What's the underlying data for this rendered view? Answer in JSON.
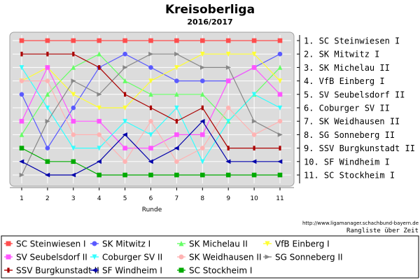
{
  "chart_data": {
    "type": "line",
    "title": "Kreisoberliga",
    "subtitle": "2016/2017",
    "xlabel": "Runde",
    "ylabel": "",
    "x": [
      1,
      2,
      3,
      4,
      5,
      6,
      7,
      8,
      9,
      10,
      11
    ],
    "xlim": [
      1,
      11
    ],
    "ylim": [
      1,
      11
    ],
    "y_inverted": true,
    "grid": true,
    "legend_position": "bottom",
    "rank_labels": [
      "1. SC Steinwiesen I",
      "2. SK Mitwitz I",
      "3. SK Michelau II",
      "4. VfB Einberg I",
      "5. SV Seubelsdorf II",
      "6. Coburger SV II",
      "7. SK Weidhausen II",
      "8. SG Sonneberg II",
      "9. SSV Burgkunstadt II",
      "10. SF Windheim I",
      "11. SC Stockheim I"
    ],
    "source_url": "http://www.ligamanager.schachbund-bayern.de",
    "footer_label": "Rangliste über Zeit",
    "series": [
      {
        "name": "SC Steinwiesen I",
        "color": "#ff4d4d",
        "marker": "square",
        "values": [
          1,
          1,
          1,
          1,
          1,
          1,
          1,
          1,
          1,
          1,
          1
        ]
      },
      {
        "name": "SK Mitwitz I",
        "color": "#5a5aff",
        "marker": "circle",
        "values": [
          5,
          9,
          6,
          3,
          2,
          3,
          4,
          4,
          4,
          3,
          2
        ]
      },
      {
        "name": "SK Michelau II",
        "color": "#66ff66",
        "marker": "triangle-up",
        "values": [
          8,
          5,
          3,
          2,
          4,
          5,
          5,
          5,
          7,
          5,
          3
        ]
      },
      {
        "name": "VfB Einberg I",
        "color": "#ffff33",
        "marker": "triangle-down",
        "values": [
          4,
          3,
          5,
          6,
          6,
          4,
          3,
          2,
          2,
          2,
          4
        ]
      },
      {
        "name": "SV Seubelsdorf II",
        "color": "#ff55ff",
        "marker": "square",
        "values": [
          7,
          3,
          7,
          7,
          9,
          9,
          8,
          8,
          4,
          3,
          5
        ]
      },
      {
        "name": "Coburger SV II",
        "color": "#33ffff",
        "marker": "triangle-down",
        "values": [
          3,
          6,
          9,
          9,
          7,
          8,
          6,
          10,
          7,
          5,
          6
        ]
      },
      {
        "name": "SK Weidhausen II",
        "color": "#ffb3b3",
        "marker": "circle",
        "values": [
          4,
          4,
          8,
          8,
          10,
          7,
          10,
          9,
          6,
          8,
          7
        ]
      },
      {
        "name": "SG Sonneberg II",
        "color": "#888888",
        "marker": "triangle-right",
        "values": [
          11,
          7,
          4,
          5,
          3,
          2,
          2,
          3,
          3,
          7,
          8
        ]
      },
      {
        "name": "SSV Burgkunstadt II",
        "color": "#aa0000",
        "marker": "bar",
        "values": [
          2,
          2,
          2,
          3,
          5,
          6,
          7,
          6,
          9,
          9,
          9
        ]
      },
      {
        "name": "SF Windheim I",
        "color": "#0000aa",
        "marker": "triangle-left",
        "values": [
          10,
          11,
          11,
          10,
          8,
          10,
          9,
          7,
          10,
          10,
          10
        ]
      },
      {
        "name": "SC Stockheim I",
        "color": "#00aa00",
        "marker": "square",
        "values": [
          9,
          10,
          10,
          11,
          11,
          11,
          11,
          11,
          11,
          11,
          11
        ]
      }
    ]
  }
}
